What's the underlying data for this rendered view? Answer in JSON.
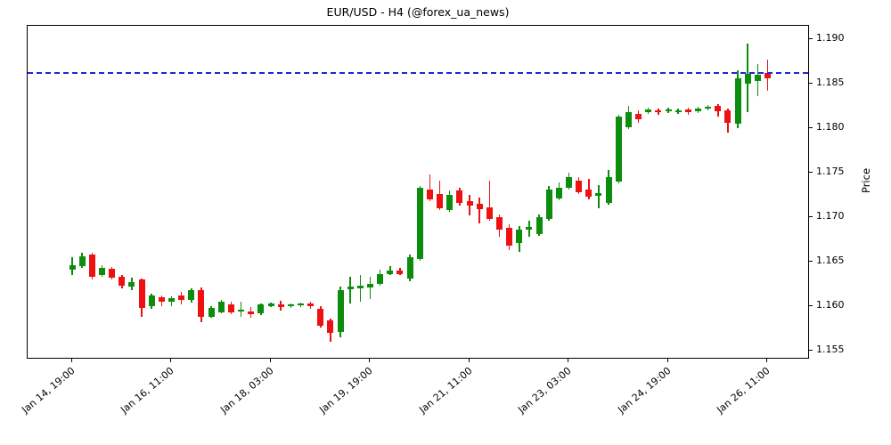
{
  "title": "EUR/USD - H4 (@forex_ua_news)",
  "y_axis": {
    "label": "Price",
    "tick_labels": [
      "1.190",
      "1.185",
      "1.180",
      "1.175",
      "1.170",
      "1.165",
      "1.160",
      "1.155"
    ]
  },
  "x_axis": {
    "tick_labels": [
      "Jan 14, 19:00",
      "Jan 16, 11:00",
      "Jan 18, 03:00",
      "Jan 19, 19:00",
      "Jan 21, 11:00",
      "Jan 23, 03:00",
      "Jan 24, 19:00",
      "Jan 26, 11:00"
    ],
    "tick_candle_indices": [
      0,
      10,
      20,
      30,
      40,
      50,
      60,
      70
    ]
  },
  "colors": {
    "up": "#0d8d0d",
    "down": "#ee1111",
    "reference_line": "#2222dd"
  },
  "chart_data": {
    "type": "candlestick",
    "title": "EUR/USD - H4 (@forex_ua_news)",
    "symbol": "EUR/USD",
    "timeframe": "H4",
    "ylabel": "Price",
    "ylim": [
      1.154,
      1.1915
    ],
    "yticks": [
      1.155,
      1.16,
      1.165,
      1.17,
      1.175,
      1.18,
      1.185,
      1.19
    ],
    "grid": false,
    "reference_line": {
      "price": 1.1862,
      "style": "dashed",
      "color": "blue"
    },
    "x_tick_labels": [
      "Jan 14, 19:00",
      "Jan 16, 11:00",
      "Jan 18, 03:00",
      "Jan 19, 19:00",
      "Jan 21, 11:00",
      "Jan 23, 03:00",
      "Jan 24, 19:00",
      "Jan 26, 11:00"
    ],
    "x_tick_indices": [
      0,
      10,
      20,
      30,
      40,
      50,
      60,
      70
    ],
    "candles_ohlc": [
      [
        1.1641,
        1.1655,
        1.1635,
        1.1646
      ],
      [
        1.1645,
        1.166,
        1.1643,
        1.1656
      ],
      [
        1.1658,
        1.166,
        1.163,
        1.1633
      ],
      [
        1.1635,
        1.1646,
        1.1633,
        1.1643
      ],
      [
        1.1642,
        1.1644,
        1.163,
        1.1632
      ],
      [
        1.1633,
        1.1635,
        1.162,
        1.1623
      ],
      [
        1.1622,
        1.1632,
        1.1618,
        1.1627
      ],
      [
        1.163,
        1.1631,
        1.1588,
        1.1598
      ],
      [
        1.16,
        1.1614,
        1.1597,
        1.1612
      ],
      [
        1.161,
        1.1612,
        1.16,
        1.1605
      ],
      [
        1.1605,
        1.1611,
        1.16,
        1.1609
      ],
      [
        1.1612,
        1.1616,
        1.1602,
        1.1607
      ],
      [
        1.1607,
        1.162,
        1.1604,
        1.1618
      ],
      [
        1.1618,
        1.1621,
        1.1582,
        1.1588
      ],
      [
        1.1588,
        1.16,
        1.1587,
        1.1598
      ],
      [
        1.1593,
        1.1607,
        1.1592,
        1.1605
      ],
      [
        1.1602,
        1.1605,
        1.1591,
        1.1593
      ],
      [
        1.1594,
        1.1605,
        1.1588,
        1.1596
      ],
      [
        1.1594,
        1.1599,
        1.1587,
        1.1591
      ],
      [
        1.1592,
        1.1603,
        1.159,
        1.1602
      ],
      [
        1.16,
        1.1604,
        1.1599,
        1.1603
      ],
      [
        1.1602,
        1.1606,
        1.1595,
        1.1599
      ],
      [
        1.16,
        1.1603,
        1.1598,
        1.1602
      ],
      [
        1.1601,
        1.1604,
        1.1599,
        1.1603
      ],
      [
        1.1603,
        1.1605,
        1.1597,
        1.16
      ],
      [
        1.1597,
        1.16,
        1.1576,
        1.1578
      ],
      [
        1.1584,
        1.1586,
        1.156,
        1.157
      ],
      [
        1.1571,
        1.1622,
        1.1565,
        1.1618
      ],
      [
        1.1619,
        1.1633,
        1.1603,
        1.1622
      ],
      [
        1.162,
        1.1635,
        1.1605,
        1.1623
      ],
      [
        1.1621,
        1.1633,
        1.1608,
        1.1625
      ],
      [
        1.1625,
        1.1641,
        1.1623,
        1.1636
      ],
      [
        1.1636,
        1.1645,
        1.1635,
        1.164
      ],
      [
        1.164,
        1.1643,
        1.1635,
        1.1636
      ],
      [
        1.1631,
        1.1658,
        1.1628,
        1.1655
      ],
      [
        1.1653,
        1.1735,
        1.1651,
        1.1733
      ],
      [
        1.1731,
        1.1748,
        1.1718,
        1.172
      ],
      [
        1.1726,
        1.1741,
        1.1708,
        1.171
      ],
      [
        1.1708,
        1.173,
        1.1706,
        1.1725
      ],
      [
        1.173,
        1.1733,
        1.1713,
        1.1716
      ],
      [
        1.1718,
        1.1725,
        1.1702,
        1.1713
      ],
      [
        1.1715,
        1.1722,
        1.1693,
        1.1709
      ],
      [
        1.1711,
        1.1741,
        1.1696,
        1.1698
      ],
      [
        1.17,
        1.1703,
        1.1678,
        1.1686
      ],
      [
        1.1688,
        1.1692,
        1.1663,
        1.1668
      ],
      [
        1.1671,
        1.169,
        1.1661,
        1.1686
      ],
      [
        1.1686,
        1.1696,
        1.1678,
        1.1689
      ],
      [
        1.1681,
        1.1703,
        1.1679,
        1.17
      ],
      [
        1.1698,
        1.1735,
        1.1696,
        1.1731
      ],
      [
        1.1721,
        1.1739,
        1.1719,
        1.1733
      ],
      [
        1.1733,
        1.175,
        1.1731,
        1.1745
      ],
      [
        1.1741,
        1.1745,
        1.1726,
        1.1728
      ],
      [
        1.1731,
        1.1743,
        1.172,
        1.1723
      ],
      [
        1.1724,
        1.1736,
        1.171,
        1.1727
      ],
      [
        1.1716,
        1.1753,
        1.1714,
        1.1745
      ],
      [
        1.174,
        1.1815,
        1.1738,
        1.1813
      ],
      [
        1.1801,
        1.1825,
        1.1799,
        1.1818
      ],
      [
        1.1816,
        1.182,
        1.1806,
        1.181
      ],
      [
        1.1818,
        1.1823,
        1.1816,
        1.1821
      ],
      [
        1.182,
        1.1822,
        1.1815,
        1.1818
      ],
      [
        1.1819,
        1.1823,
        1.1817,
        1.1821
      ],
      [
        1.1818,
        1.1822,
        1.1816,
        1.182
      ],
      [
        1.1821,
        1.1823,
        1.1815,
        1.1818
      ],
      [
        1.1819,
        1.1824,
        1.1817,
        1.1822
      ],
      [
        1.1822,
        1.1826,
        1.182,
        1.1824
      ],
      [
        1.1825,
        1.1827,
        1.1813,
        1.1819
      ],
      [
        1.182,
        1.1822,
        1.1795,
        1.1806
      ],
      [
        1.1805,
        1.1865,
        1.18,
        1.1856
      ],
      [
        1.185,
        1.1895,
        1.1818,
        1.1861
      ],
      [
        1.1853,
        1.1872,
        1.1836,
        1.186
      ],
      [
        1.1862,
        1.1877,
        1.1842,
        1.1856
      ]
    ]
  }
}
